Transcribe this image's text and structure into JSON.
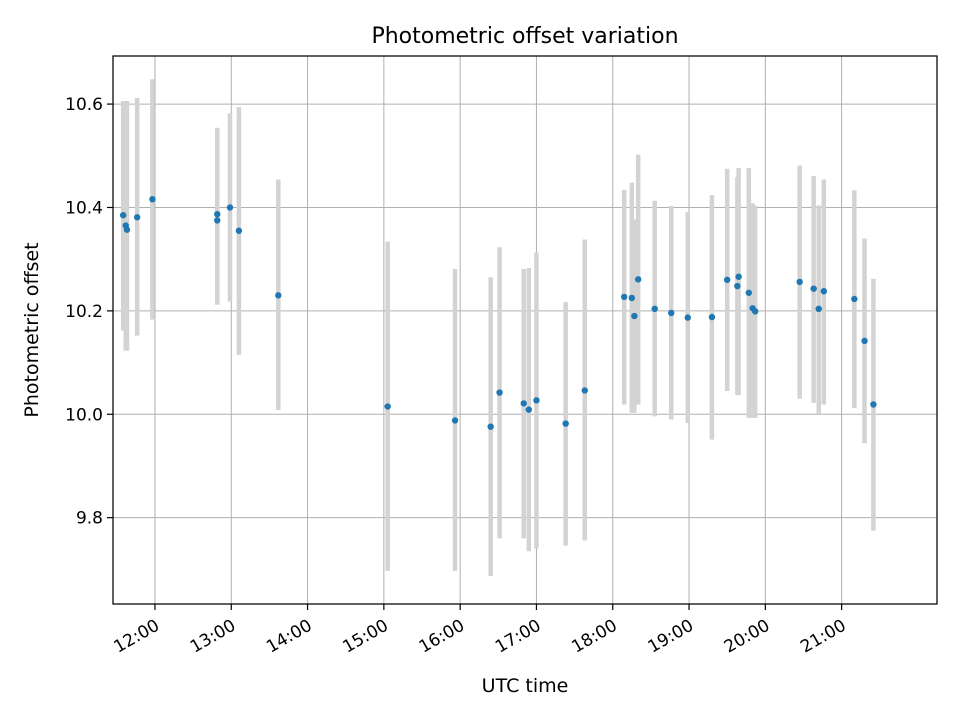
{
  "chart_data": {
    "type": "scatter",
    "title": "Photometric offset variation",
    "xlabel": "UTC time",
    "ylabel": "Photometric offset",
    "xlim": [
      "11:27",
      "22:15"
    ],
    "ylim": [
      9.633,
      10.693
    ],
    "xticks": [
      "12:00",
      "13:00",
      "14:00",
      "15:00",
      "16:00",
      "17:00",
      "18:00",
      "19:00",
      "20:00",
      "21:00"
    ],
    "yticks": [
      "9.8",
      "10.0",
      "10.2",
      "10.4",
      "10.6"
    ],
    "grid": true,
    "marker_color": "#1f77b4",
    "errorbar_color": "#d3d3d3",
    "points": [
      {
        "t": "11:35",
        "y": 10.385,
        "lo": 10.162,
        "hi": 10.606
      },
      {
        "t": "11:37",
        "y": 10.365,
        "lo": 10.123,
        "hi": 10.606
      },
      {
        "t": "11:38",
        "y": 10.357,
        "lo": 10.123,
        "hi": 10.606
      },
      {
        "t": "11:46",
        "y": 10.381,
        "lo": 10.152,
        "hi": 10.612
      },
      {
        "t": "11:58",
        "y": 10.416,
        "lo": 10.183,
        "hi": 10.648
      },
      {
        "t": "12:49",
        "y": 10.387,
        "lo": 10.212,
        "hi": 10.554
      },
      {
        "t": "12:49",
        "y": 10.375,
        "lo": 10.212,
        "hi": 10.554
      },
      {
        "t": "12:59",
        "y": 10.4,
        "lo": 10.218,
        "hi": 10.582
      },
      {
        "t": "13:06",
        "y": 10.355,
        "lo": 10.115,
        "hi": 10.594
      },
      {
        "t": "13:37",
        "y": 10.23,
        "lo": 10.008,
        "hi": 10.454
      },
      {
        "t": "15:03",
        "y": 10.015,
        "lo": 9.697,
        "hi": 10.334
      },
      {
        "t": "15:56",
        "y": 9.988,
        "lo": 9.697,
        "hi": 10.281
      },
      {
        "t": "16:24",
        "y": 9.976,
        "lo": 9.687,
        "hi": 10.265
      },
      {
        "t": "16:31",
        "y": 10.042,
        "lo": 9.76,
        "hi": 10.323
      },
      {
        "t": "16:50",
        "y": 10.021,
        "lo": 9.76,
        "hi": 10.281
      },
      {
        "t": "16:54",
        "y": 10.009,
        "lo": 9.735,
        "hi": 10.283
      },
      {
        "t": "17:00",
        "y": 10.027,
        "lo": 9.74,
        "hi": 10.313
      },
      {
        "t": "17:23",
        "y": 9.982,
        "lo": 9.746,
        "hi": 10.217
      },
      {
        "t": "17:38",
        "y": 10.046,
        "lo": 9.756,
        "hi": 10.338
      },
      {
        "t": "18:09",
        "y": 10.227,
        "lo": 10.019,
        "hi": 10.434
      },
      {
        "t": "18:15",
        "y": 10.225,
        "lo": 10.003,
        "hi": 10.448
      },
      {
        "t": "18:17",
        "y": 10.19,
        "lo": 10.003,
        "hi": 10.377
      },
      {
        "t": "18:20",
        "y": 10.261,
        "lo": 10.019,
        "hi": 10.502
      },
      {
        "t": "18:33",
        "y": 10.204,
        "lo": 9.996,
        "hi": 10.413
      },
      {
        "t": "18:46",
        "y": 10.196,
        "lo": 9.99,
        "hi": 10.403
      },
      {
        "t": "18:59",
        "y": 10.187,
        "lo": 9.983,
        "hi": 10.391
      },
      {
        "t": "19:18",
        "y": 10.188,
        "lo": 9.951,
        "hi": 10.424
      },
      {
        "t": "19:30",
        "y": 10.26,
        "lo": 10.045,
        "hi": 10.475
      },
      {
        "t": "19:38",
        "y": 10.248,
        "lo": 10.037,
        "hi": 10.459
      },
      {
        "t": "19:39",
        "y": 10.266,
        "lo": 10.037,
        "hi": 10.476
      },
      {
        "t": "19:47",
        "y": 10.235,
        "lo": 9.993,
        "hi": 10.476
      },
      {
        "t": "19:50",
        "y": 10.205,
        "lo": 9.993,
        "hi": 10.408
      },
      {
        "t": "19:52",
        "y": 10.199,
        "lo": 9.993,
        "hi": 10.403
      },
      {
        "t": "20:27",
        "y": 10.256,
        "lo": 10.03,
        "hi": 10.481
      },
      {
        "t": "20:38",
        "y": 10.243,
        "lo": 10.022,
        "hi": 10.461
      },
      {
        "t": "20:42",
        "y": 10.204,
        "lo": 10.001,
        "hi": 10.404
      },
      {
        "t": "20:46",
        "y": 10.238,
        "lo": 10.019,
        "hi": 10.454
      },
      {
        "t": "21:10",
        "y": 10.223,
        "lo": 10.012,
        "hi": 10.433
      },
      {
        "t": "21:18",
        "y": 10.142,
        "lo": 9.944,
        "hi": 10.34
      },
      {
        "t": "21:25",
        "y": 10.019,
        "lo": 9.775,
        "hi": 10.262
      }
    ]
  }
}
